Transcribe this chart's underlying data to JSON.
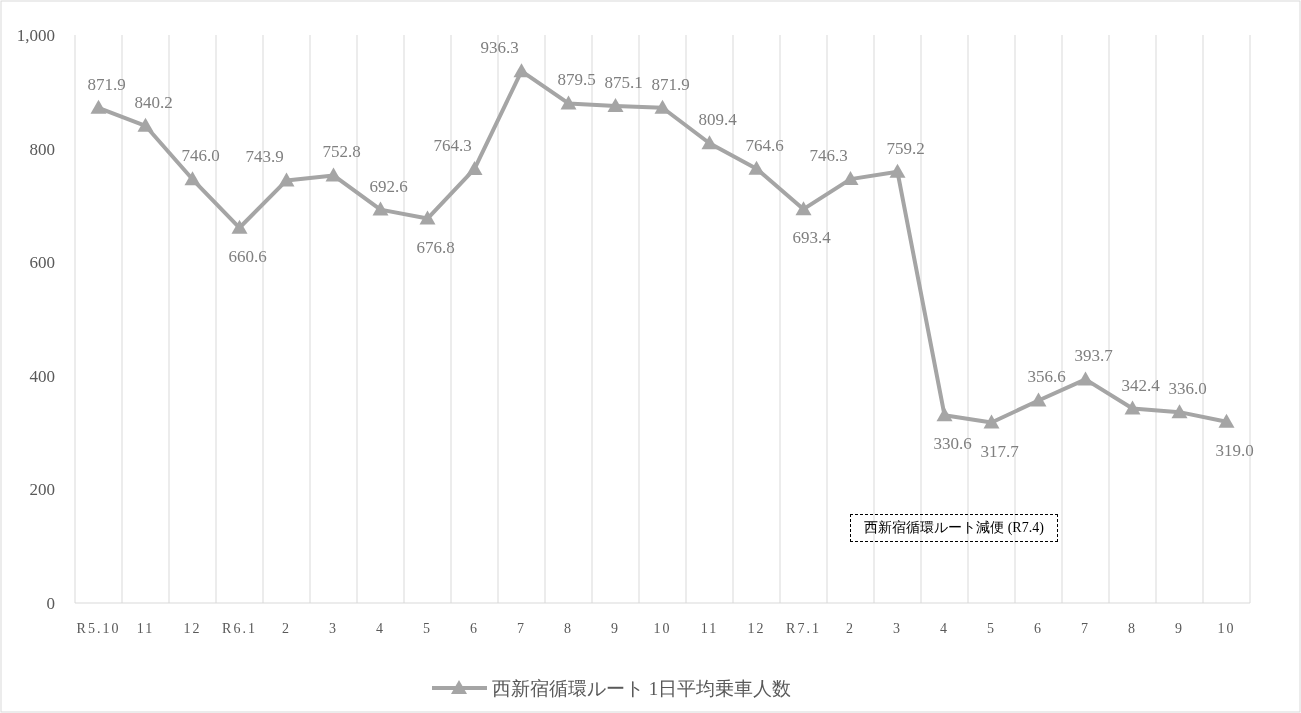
{
  "chart_data": {
    "type": "line",
    "categories": [
      "R5.10",
      "11",
      "12",
      "R6.1",
      "2",
      "3",
      "4",
      "5",
      "6",
      "7",
      "8",
      "9",
      "10",
      "11",
      "12",
      "R7.1",
      "2",
      "3",
      "4",
      "5",
      "6",
      "7",
      "8",
      "9",
      "10"
    ],
    "series": [
      {
        "name": "西新宿循環ルート 1日平均乗車人数",
        "color": "#a5a5a5",
        "values": [
          871.9,
          840.2,
          746.0,
          660.6,
          743.9,
          752.8,
          692.6,
          676.8,
          764.3,
          936.3,
          879.5,
          875.1,
          871.9,
          809.4,
          764.6,
          693.4,
          746.3,
          759.2,
          330.6,
          317.7,
          356.6,
          393.7,
          342.4,
          336.0,
          319.0
        ],
        "value_labels": [
          "871.9",
          "840.2",
          "746.0",
          "660.6",
          "743.9",
          "752.8",
          "692.6",
          "676.8",
          "764.3",
          "936.3",
          "879.5",
          "875.1",
          "871.9",
          "809.4",
          "764.6",
          "693.4",
          "746.3",
          "759.2",
          "330.6",
          "317.7",
          "356.6",
          "393.7",
          "342.4",
          "336.0",
          "319.0"
        ]
      }
    ],
    "ylim": [
      0,
      1000
    ],
    "yticks": [
      0,
      200,
      400,
      600,
      800,
      {
        "value": 1000,
        "label": "1,000"
      }
    ],
    "grid": "x",
    "marker": "triangle",
    "line_style": "solid",
    "legend": "bottom",
    "annotations": [
      "西新宿循環ルート減便 (R7.4)"
    ]
  }
}
